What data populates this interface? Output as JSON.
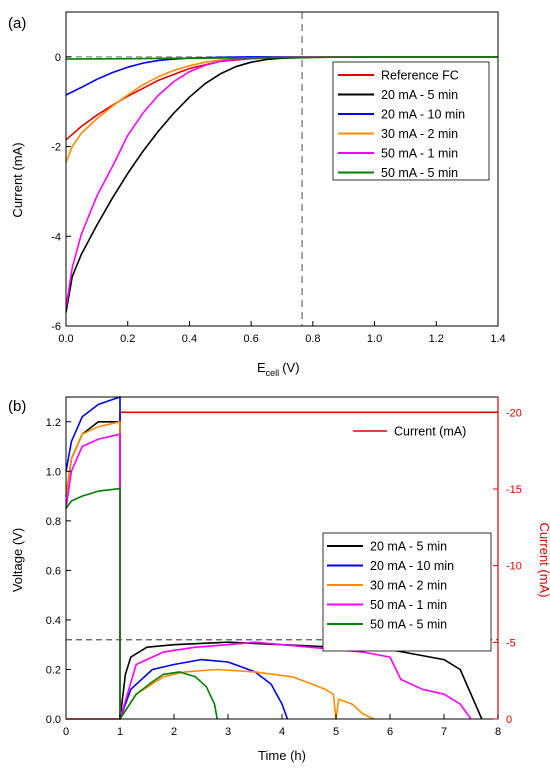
{
  "chart_data": [
    {
      "panel": "(a)",
      "type": "line",
      "xlabel": "E",
      "xlabel_sub": "cell",
      "xlabel_unit": "(V)",
      "ylabel": "Current (mA)",
      "xlim": [
        0,
        1.4
      ],
      "ylim": [
        -6,
        1
      ],
      "x_ticks": [
        0.0,
        0.2,
        0.4,
        0.6,
        0.8,
        1.0,
        1.2,
        1.4
      ],
      "x_tick_labels": [
        "0.0",
        "0.2",
        "0.4",
        "0.6",
        "0.8",
        "1.0",
        "1.2",
        "1.4"
      ],
      "y_ticks": [
        0,
        -2,
        -4,
        -6
      ],
      "y_tick_labels": [
        "0",
        "-2",
        "-4",
        "-6"
      ],
      "reference_lines": [
        {
          "orientation": "horizontal",
          "value": 0,
          "style": "dashed",
          "color": "#888888"
        },
        {
          "orientation": "vertical",
          "value": 0.765,
          "style": "dashed",
          "color": "#888888"
        }
      ],
      "legend_position": "right",
      "series": [
        {
          "name": "Reference FC",
          "color": "#e00000",
          "x": [
            0,
            0.05,
            0.1,
            0.15,
            0.2,
            0.3,
            0.4,
            0.5,
            0.6,
            0.7,
            0.8,
            1.0,
            1.4
          ],
          "y": [
            -1.85,
            -1.55,
            -1.3,
            -1.08,
            -0.88,
            -0.52,
            -0.26,
            -0.1,
            -0.04,
            -0.02,
            -0.01,
            0.0,
            0.0
          ]
        },
        {
          "name": "20 mA - 5 min",
          "color": "#000000",
          "x": [
            0,
            0.02,
            0.05,
            0.1,
            0.15,
            0.2,
            0.25,
            0.3,
            0.35,
            0.4,
            0.45,
            0.5,
            0.55,
            0.6,
            0.65,
            0.7,
            0.8,
            1.0,
            1.4
          ],
          "y": [
            -5.7,
            -4.9,
            -4.4,
            -3.75,
            -3.15,
            -2.6,
            -2.1,
            -1.65,
            -1.25,
            -0.9,
            -0.6,
            -0.38,
            -0.22,
            -0.12,
            -0.06,
            -0.03,
            -0.01,
            0.0,
            0.0
          ]
        },
        {
          "name": "20 mA - 10 min",
          "color": "#0000ee",
          "x": [
            0,
            0.05,
            0.1,
            0.15,
            0.2,
            0.25,
            0.3,
            0.35,
            0.4,
            0.5,
            0.6,
            0.8,
            1.4
          ],
          "y": [
            -0.85,
            -0.68,
            -0.5,
            -0.35,
            -0.23,
            -0.14,
            -0.08,
            -0.05,
            -0.03,
            -0.01,
            0.0,
            0.0,
            0.0
          ]
        },
        {
          "name": "30 mA - 2 min",
          "color": "#ff8c00",
          "x": [
            0,
            0.02,
            0.05,
            0.1,
            0.15,
            0.2,
            0.25,
            0.3,
            0.35,
            0.4,
            0.45,
            0.5,
            0.6,
            0.7,
            0.8,
            1.0,
            1.4
          ],
          "y": [
            -2.35,
            -2.0,
            -1.7,
            -1.38,
            -1.1,
            -0.85,
            -0.62,
            -0.44,
            -0.3,
            -0.2,
            -0.12,
            -0.07,
            -0.03,
            -0.01,
            0.0,
            0.0,
            0.0
          ]
        },
        {
          "name": "50 mA - 1 min",
          "color": "#ff00ff",
          "x": [
            0,
            0.02,
            0.05,
            0.1,
            0.15,
            0.2,
            0.25,
            0.3,
            0.35,
            0.4,
            0.45,
            0.5,
            0.55,
            0.6,
            0.7,
            0.8,
            1.0,
            1.4
          ],
          "y": [
            -5.6,
            -4.7,
            -3.95,
            -3.1,
            -2.45,
            -1.75,
            -1.25,
            -0.85,
            -0.55,
            -0.33,
            -0.19,
            -0.1,
            -0.05,
            -0.03,
            -0.01,
            0.0,
            0.0,
            0.0
          ]
        },
        {
          "name": "50 mA - 5 min",
          "color": "#008000",
          "x": [
            0,
            0.2,
            0.4,
            0.6,
            0.8,
            1.0,
            1.2,
            1.4
          ],
          "y": [
            -0.05,
            -0.04,
            -0.03,
            -0.02,
            -0.01,
            0.0,
            0.0,
            0.0
          ]
        }
      ]
    },
    {
      "panel": "(b)",
      "type": "line",
      "xlabel": "Time (h)",
      "ylabel": "Voltage (V)",
      "ylabel_right": "Current (mA)",
      "xlim": [
        0,
        8
      ],
      "ylim": [
        0,
        1.3
      ],
      "ylim_right": [
        0,
        -21
      ],
      "x_ticks": [
        0,
        1,
        2,
        3,
        4,
        5,
        6,
        7,
        8
      ],
      "x_tick_labels": [
        "0",
        "1",
        "2",
        "3",
        "4",
        "5",
        "6",
        "7",
        "8"
      ],
      "y_ticks": [
        0.0,
        0.2,
        0.4,
        0.6,
        0.8,
        1.0,
        1.2
      ],
      "y_tick_labels": [
        "0.0",
        "0.2",
        "0.4",
        "0.6",
        "0.8",
        "1.0",
        "1.2"
      ],
      "y_right_ticks": [
        0,
        -5,
        -10,
        -15,
        -20
      ],
      "y_right_tick_labels": [
        "0",
        "-5",
        "-10",
        "-15",
        "-20"
      ],
      "reference_lines": [
        {
          "orientation": "horizontal",
          "value": 0.32,
          "style": "dashed",
          "color": "#555555"
        }
      ],
      "current_legend": "Current (mA)",
      "current_legend_position": "top-right",
      "legend_position": "right",
      "current_series": {
        "name": "Current (mA)",
        "color": "#e00000",
        "axis": "right",
        "x": [
          0,
          1.0,
          1.0,
          8
        ],
        "y": [
          0,
          0,
          -20,
          -20
        ]
      },
      "series": [
        {
          "name": "20 mA - 5 min",
          "color": "#000000",
          "x": [
            0,
            0.1,
            0.3,
            0.6,
            1.0,
            1.0,
            1.1,
            1.2,
            1.5,
            2.0,
            3.0,
            4.0,
            5.0,
            5.5,
            6.0,
            6.5,
            7.0,
            7.3,
            7.6,
            7.7
          ],
          "y": [
            0.9,
            1.05,
            1.15,
            1.2,
            1.2,
            0.0,
            0.18,
            0.25,
            0.29,
            0.3,
            0.31,
            0.3,
            0.29,
            0.28,
            0.28,
            0.26,
            0.24,
            0.2,
            0.05,
            0.0
          ]
        },
        {
          "name": "20 mA - 10 min",
          "color": "#0000ee",
          "x": [
            0,
            0.1,
            0.3,
            0.6,
            1.0,
            1.0,
            1.2,
            1.6,
            2.0,
            2.5,
            3.0,
            3.5,
            3.8,
            4.0,
            4.1
          ],
          "y": [
            1.0,
            1.12,
            1.22,
            1.27,
            1.3,
            0.0,
            0.12,
            0.2,
            0.22,
            0.24,
            0.23,
            0.19,
            0.14,
            0.06,
            0.0
          ]
        },
        {
          "name": "30 mA - 2 min",
          "color": "#ff8c00",
          "x": [
            0,
            0.1,
            0.3,
            0.6,
            1.0,
            1.0,
            1.3,
            1.8,
            2.2,
            2.8,
            3.5,
            4.2,
            4.8,
            4.95,
            5.0,
            5.05,
            5.3,
            5.5,
            5.7
          ],
          "y": [
            0.9,
            1.05,
            1.15,
            1.18,
            1.2,
            0.0,
            0.1,
            0.17,
            0.19,
            0.2,
            0.19,
            0.17,
            0.12,
            0.1,
            0.0,
            0.08,
            0.06,
            0.02,
            0.0
          ]
        },
        {
          "name": "50 mA - 1 min",
          "color": "#ff00ff",
          "x": [
            0,
            0.1,
            0.3,
            0.6,
            1.0,
            1.0,
            1.3,
            1.8,
            2.4,
            3.0,
            3.5,
            4.0,
            5.0,
            5.5,
            6.0,
            6.2,
            6.6,
            7.0,
            7.3,
            7.5
          ],
          "y": [
            0.85,
            1.0,
            1.1,
            1.13,
            1.15,
            0.0,
            0.22,
            0.27,
            0.29,
            0.3,
            0.31,
            0.3,
            0.28,
            0.27,
            0.25,
            0.16,
            0.12,
            0.1,
            0.06,
            0.0
          ]
        },
        {
          "name": "50 mA - 5 min",
          "color": "#008000",
          "x": [
            0,
            0.1,
            0.3,
            0.6,
            1.0,
            1.0,
            1.3,
            1.6,
            1.8,
            2.1,
            2.4,
            2.6,
            2.75,
            2.8
          ],
          "y": [
            0.85,
            0.88,
            0.9,
            0.92,
            0.93,
            0.0,
            0.1,
            0.15,
            0.18,
            0.19,
            0.17,
            0.13,
            0.06,
            0.0
          ]
        }
      ]
    }
  ]
}
